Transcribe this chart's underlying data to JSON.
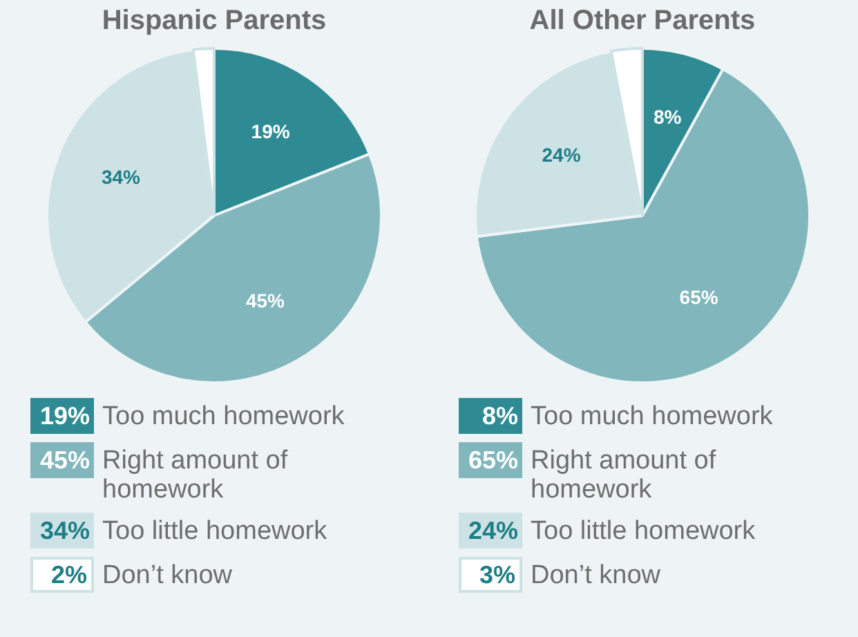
{
  "chart_data": [
    {
      "type": "pie",
      "title": "Hispanic Parents",
      "categories": [
        "Too much homework",
        "Right amount of homework",
        "Too little homework",
        "Don’t know"
      ],
      "values": [
        19,
        45,
        34,
        2
      ],
      "value_labels": [
        "19%",
        "45%",
        "34%",
        "2%"
      ],
      "colors": [
        "#2f8b93",
        "#80b6bc",
        "#cde2e5",
        "#ffffff"
      ],
      "legend": "bottom"
    },
    {
      "type": "pie",
      "title": "All Other Parents",
      "categories": [
        "Too much homework",
        "Right amount of homework",
        "Too little homework",
        "Don’t know"
      ],
      "values": [
        8,
        65,
        24,
        3
      ],
      "value_labels": [
        "8%",
        "65%",
        "24%",
        "3%"
      ],
      "colors": [
        "#2f8b93",
        "#80b6bc",
        "#cde2e5",
        "#ffffff"
      ],
      "legend": "bottom"
    }
  ]
}
